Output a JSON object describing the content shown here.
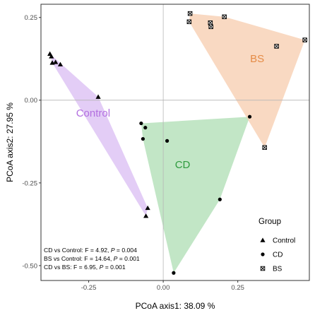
{
  "chart_data": {
    "type": "scatter",
    "xlabel": "PCoA axis1: 38.09 %",
    "ylabel": "PCoA axis2: 27.95 %",
    "xlim": [
      -0.41,
      0.49
    ],
    "ylim": [
      -0.545,
      0.29
    ],
    "x_ticks": [
      -0.25,
      0.0,
      0.25
    ],
    "x_tick_labels": [
      "-0.25",
      "0.00",
      "0.25"
    ],
    "y_ticks": [
      0.25,
      0.0,
      -0.25,
      -0.5
    ],
    "y_tick_labels": [
      "0.25",
      "0.00",
      "-0.25",
      "-0.50"
    ],
    "grid": false,
    "reference_lines": [
      0,
      0
    ],
    "legend": {
      "title": "Group",
      "position": "bottom-right",
      "entries": [
        "Control",
        "CD",
        "BS"
      ]
    },
    "series": [
      {
        "name": "Control",
        "marker": "triangle",
        "hull_color": "#d7b8f2",
        "label_color": "#b36fe0",
        "points": [
          {
            "x": -0.38,
            "y": 0.14
          },
          {
            "x": -0.375,
            "y": 0.132
          },
          {
            "x": -0.372,
            "y": 0.113
          },
          {
            "x": -0.361,
            "y": 0.115
          },
          {
            "x": -0.345,
            "y": 0.108
          },
          {
            "x": -0.218,
            "y": 0.01
          },
          {
            "x": -0.052,
            "y": -0.326
          },
          {
            "x": -0.058,
            "y": -0.35
          }
        ]
      },
      {
        "name": "CD",
        "marker": "circle",
        "hull_color": "#a8dcae",
        "label_color": "#2f9b3f",
        "points": [
          {
            "x": -0.074,
            "y": -0.07
          },
          {
            "x": -0.06,
            "y": -0.083
          },
          {
            "x": -0.068,
            "y": -0.117
          },
          {
            "x": 0.013,
            "y": -0.123
          },
          {
            "x": 0.29,
            "y": -0.05
          },
          {
            "x": 0.19,
            "y": -0.3
          },
          {
            "x": 0.035,
            "y": -0.522
          }
        ]
      },
      {
        "name": "BS",
        "marker": "square-cross",
        "hull_color": "#f7c9a8",
        "label_color": "#e58b46",
        "points": [
          {
            "x": 0.09,
            "y": 0.262
          },
          {
            "x": 0.087,
            "y": 0.237
          },
          {
            "x": 0.158,
            "y": 0.234
          },
          {
            "x": 0.16,
            "y": 0.222
          },
          {
            "x": 0.205,
            "y": 0.252
          },
          {
            "x": 0.38,
            "y": 0.163
          },
          {
            "x": 0.475,
            "y": 0.182
          },
          {
            "x": 0.34,
            "y": -0.143
          }
        ]
      }
    ],
    "group_labels": [
      {
        "text": "Control",
        "x": -0.235,
        "y": -0.05
      },
      {
        "text": "CD",
        "x": 0.065,
        "y": -0.205
      },
      {
        "text": "BS",
        "x": 0.315,
        "y": 0.115
      }
    ],
    "annotations": [
      {
        "prefix": "CD vs Control: F = 4.92, ",
        "p": "P",
        "suffix": " = 0.004"
      },
      {
        "prefix": "BS vs Control: F = 14.64, ",
        "p": "P",
        "suffix": " = 0.001"
      },
      {
        "prefix": "CD vs BS: F = 6.95, ",
        "p": "P",
        "suffix": " = 0.001"
      }
    ]
  }
}
